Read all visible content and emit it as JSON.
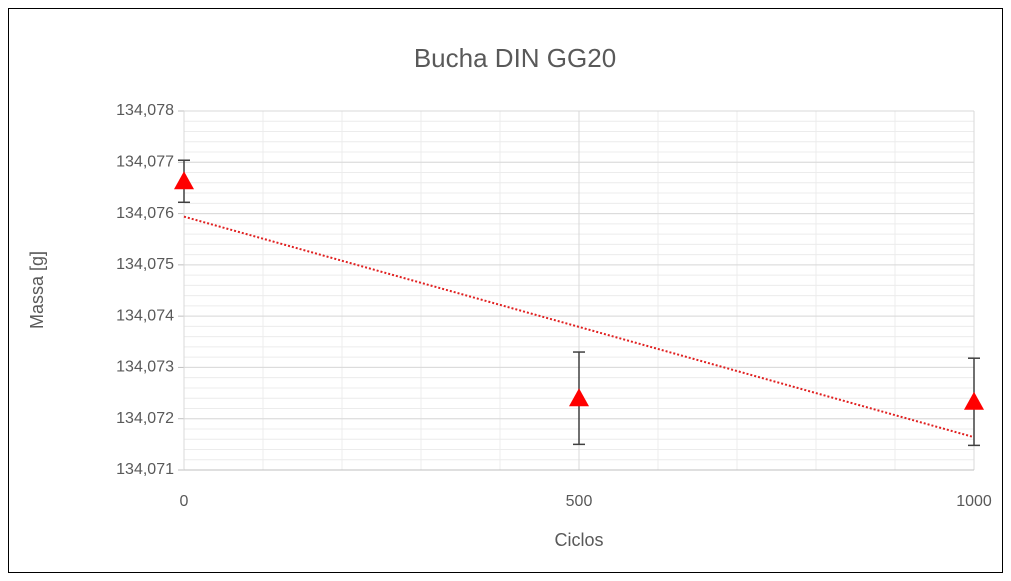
{
  "chart_data": {
    "type": "scatter",
    "title": "Bucha DIN GG20",
    "x_label": "Ciclos",
    "y_label": "Massa [g]",
    "xlim": [
      0,
      1000
    ],
    "xticks": [
      0,
      500,
      1000
    ],
    "ylim": [
      134.071,
      134.078
    ],
    "yticks": [
      {
        "value": 134.071,
        "label": "134,071"
      },
      {
        "value": 134.072,
        "label": "134,072"
      },
      {
        "value": 134.073,
        "label": "134,073"
      },
      {
        "value": 134.074,
        "label": "134,074"
      },
      {
        "value": 134.075,
        "label": "134,075"
      },
      {
        "value": 134.076,
        "label": "134,076"
      },
      {
        "value": 134.077,
        "label": "134,077"
      },
      {
        "value": 134.078,
        "label": "134,078"
      }
    ],
    "grid": true,
    "series": [
      {
        "color": "#ff0000",
        "x": [
          0,
          500,
          1000
        ],
        "values": [
          134.07663,
          134.0724,
          134.07233
        ],
        "errors": [
          0.00041,
          0.0009,
          0.00085
        ]
      }
    ],
    "trendline": {
      "color": "#e02020",
      "x": [
        0,
        1000
      ],
      "values": [
        134.07594,
        134.07164
      ]
    }
  }
}
